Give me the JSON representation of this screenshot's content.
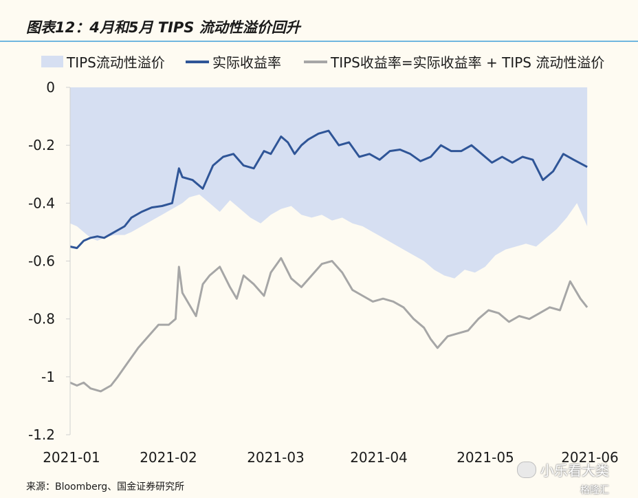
{
  "title": "图表12：4月和5月 TIPS 流动性溢价回升",
  "source": "来源：Bloomberg、国金证券研究所",
  "watermark": "小乐看大类",
  "watermark2": "格隆汇",
  "colors": {
    "area": "#d6dff2",
    "real_yield": "#2f5597",
    "tips_yield": "#a6a6a6",
    "background": "#fefbf2",
    "rule": "#6fb6df"
  },
  "chart_data": {
    "type": "area",
    "title": "",
    "xlabel": "",
    "ylabel": "",
    "ylim": [
      -1.2,
      0
    ],
    "yticks": [
      "0",
      "-0.2",
      "-0.4",
      "-0.6",
      "-0.8",
      "-1",
      "-1.2"
    ],
    "xticks": [
      "2021-01",
      "2021-02",
      "2021-03",
      "2021-04",
      "2021-05",
      "2021-06"
    ],
    "xlim": [
      "2021-01-01",
      "2021-06-03"
    ],
    "grid": false,
    "legend_position": "top",
    "series": [
      {
        "name": "TIPS流动性溢价",
        "style": "area",
        "x": [
          "2021-01-01",
          "2021-01-03",
          "2021-01-05",
          "2021-01-07",
          "2021-01-09",
          "2021-01-11",
          "2021-01-14",
          "2021-01-17",
          "2021-01-19",
          "2021-01-22",
          "2021-01-25",
          "2021-01-28",
          "2021-01-31",
          "2021-02-03",
          "2021-02-05",
          "2021-02-08",
          "2021-02-11",
          "2021-02-14",
          "2021-02-17",
          "2021-02-20",
          "2021-02-23",
          "2021-02-26",
          "2021-03-01",
          "2021-03-04",
          "2021-03-07",
          "2021-03-10",
          "2021-03-13",
          "2021-03-16",
          "2021-03-19",
          "2021-03-22",
          "2021-03-25",
          "2021-03-28",
          "2021-03-31",
          "2021-04-03",
          "2021-04-06",
          "2021-04-09",
          "2021-04-12",
          "2021-04-15",
          "2021-04-18",
          "2021-04-21",
          "2021-04-24",
          "2021-04-27",
          "2021-04-30",
          "2021-05-03",
          "2021-05-06",
          "2021-05-09",
          "2021-05-12",
          "2021-05-15",
          "2021-05-18",
          "2021-05-21",
          "2021-05-24",
          "2021-05-27",
          "2021-05-30",
          "2021-06-02"
        ],
        "values": [
          -0.47,
          -0.48,
          -0.5,
          -0.52,
          -0.53,
          -0.52,
          -0.51,
          -0.51,
          -0.5,
          -0.48,
          -0.46,
          -0.44,
          -0.42,
          -0.4,
          -0.38,
          -0.37,
          -0.4,
          -0.43,
          -0.39,
          -0.42,
          -0.45,
          -0.47,
          -0.44,
          -0.42,
          -0.41,
          -0.44,
          -0.45,
          -0.44,
          -0.46,
          -0.45,
          -0.47,
          -0.48,
          -0.5,
          -0.52,
          -0.54,
          -0.56,
          -0.58,
          -0.6,
          -0.63,
          -0.65,
          -0.66,
          -0.63,
          -0.64,
          -0.62,
          -0.58,
          -0.56,
          -0.55,
          -0.54,
          -0.55,
          -0.52,
          -0.49,
          -0.45,
          -0.4,
          -0.48
        ]
      },
      {
        "name": "实际收益率",
        "style": "line",
        "x": [
          "2021-01-01",
          "2021-01-03",
          "2021-01-05",
          "2021-01-07",
          "2021-01-09",
          "2021-01-11",
          "2021-01-14",
          "2021-01-17",
          "2021-01-19",
          "2021-01-22",
          "2021-01-25",
          "2021-01-28",
          "2021-01-31",
          "2021-02-02",
          "2021-02-03",
          "2021-02-06",
          "2021-02-09",
          "2021-02-12",
          "2021-02-15",
          "2021-02-18",
          "2021-02-21",
          "2021-02-24",
          "2021-02-27",
          "2021-03-01",
          "2021-03-04",
          "2021-03-06",
          "2021-03-08",
          "2021-03-10",
          "2021-03-12",
          "2021-03-15",
          "2021-03-18",
          "2021-03-21",
          "2021-03-24",
          "2021-03-27",
          "2021-03-30",
          "2021-04-02",
          "2021-04-05",
          "2021-04-08",
          "2021-04-11",
          "2021-04-14",
          "2021-04-17",
          "2021-04-20",
          "2021-04-23",
          "2021-04-26",
          "2021-04-29",
          "2021-05-02",
          "2021-05-05",
          "2021-05-08",
          "2021-05-11",
          "2021-05-14",
          "2021-05-17",
          "2021-05-20",
          "2021-05-23",
          "2021-05-26",
          "2021-05-29",
          "2021-06-02"
        ],
        "values": [
          -0.55,
          -0.555,
          -0.53,
          -0.52,
          -0.515,
          -0.52,
          -0.5,
          -0.48,
          -0.45,
          -0.43,
          -0.415,
          -0.41,
          -0.4,
          -0.28,
          -0.31,
          -0.32,
          -0.35,
          -0.27,
          -0.24,
          -0.23,
          -0.27,
          -0.28,
          -0.22,
          -0.23,
          -0.17,
          -0.19,
          -0.23,
          -0.2,
          -0.18,
          -0.16,
          -0.15,
          -0.2,
          -0.19,
          -0.24,
          -0.23,
          -0.25,
          -0.22,
          -0.215,
          -0.23,
          -0.255,
          -0.24,
          -0.2,
          -0.22,
          -0.22,
          -0.2,
          -0.23,
          -0.26,
          -0.24,
          -0.26,
          -0.24,
          -0.25,
          -0.32,
          -0.29,
          -0.23,
          -0.25,
          -0.275
        ]
      },
      {
        "name": "TIPS收益率=实际收益率 + TIPS 流动性溢价",
        "style": "line",
        "x": [
          "2021-01-01",
          "2021-01-03",
          "2021-01-05",
          "2021-01-07",
          "2021-01-10",
          "2021-01-13",
          "2021-01-15",
          "2021-01-18",
          "2021-01-21",
          "2021-01-24",
          "2021-01-27",
          "2021-01-30",
          "2021-02-01",
          "2021-02-02",
          "2021-02-03",
          "2021-02-05",
          "2021-02-07",
          "2021-02-09",
          "2021-02-11",
          "2021-02-14",
          "2021-02-17",
          "2021-02-19",
          "2021-02-21",
          "2021-02-24",
          "2021-02-27",
          "2021-03-01",
          "2021-03-04",
          "2021-03-07",
          "2021-03-10",
          "2021-03-13",
          "2021-03-16",
          "2021-03-19",
          "2021-03-22",
          "2021-03-25",
          "2021-03-28",
          "2021-03-31",
          "2021-04-03",
          "2021-04-06",
          "2021-04-09",
          "2021-04-12",
          "2021-04-15",
          "2021-04-17",
          "2021-04-19",
          "2021-04-22",
          "2021-04-25",
          "2021-04-28",
          "2021-05-01",
          "2021-05-04",
          "2021-05-07",
          "2021-05-10",
          "2021-05-13",
          "2021-05-16",
          "2021-05-19",
          "2021-05-22",
          "2021-05-25",
          "2021-05-28",
          "2021-05-31",
          "2021-06-02"
        ],
        "values": [
          -1.02,
          -1.03,
          -1.02,
          -1.04,
          -1.05,
          -1.03,
          -1.0,
          -0.95,
          -0.9,
          -0.86,
          -0.82,
          -0.82,
          -0.8,
          -0.62,
          -0.71,
          -0.75,
          -0.79,
          -0.68,
          -0.65,
          -0.62,
          -0.69,
          -0.73,
          -0.65,
          -0.68,
          -0.72,
          -0.64,
          -0.59,
          -0.66,
          -0.69,
          -0.65,
          -0.61,
          -0.6,
          -0.64,
          -0.7,
          -0.72,
          -0.74,
          -0.73,
          -0.74,
          -0.76,
          -0.8,
          -0.83,
          -0.87,
          -0.9,
          -0.86,
          -0.85,
          -0.84,
          -0.8,
          -0.77,
          -0.78,
          -0.81,
          -0.79,
          -0.8,
          -0.78,
          -0.76,
          -0.77,
          -0.67,
          -0.73,
          -0.76
        ]
      }
    ]
  }
}
